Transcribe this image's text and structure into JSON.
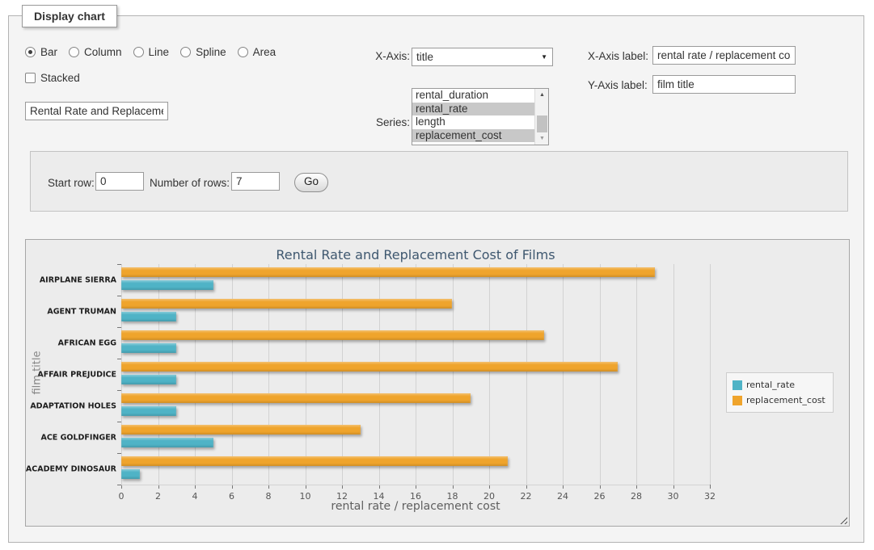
{
  "panel_legend": "Display chart",
  "chart_types": {
    "options": [
      {
        "label": "Bar",
        "selected": true
      },
      {
        "label": "Column",
        "selected": false
      },
      {
        "label": "Line",
        "selected": false
      },
      {
        "label": "Spline",
        "selected": false
      },
      {
        "label": "Area",
        "selected": false
      }
    ]
  },
  "stacked": {
    "label": "Stacked",
    "checked": false
  },
  "chart_title_input": {
    "value": "Rental Rate and Replacement Cost of Films"
  },
  "x_axis_select": {
    "label": "X-Axis:",
    "value": "title"
  },
  "series_select": {
    "label": "Series:",
    "options": [
      {
        "label": "rental_duration",
        "selected": false
      },
      {
        "label": "rental_rate",
        "selected": true
      },
      {
        "label": "length",
        "selected": false
      },
      {
        "label": "replacement_cost",
        "selected": true
      }
    ]
  },
  "x_axis_label_input": {
    "label": "X-Axis label:",
    "value": "rental rate / replacement cost"
  },
  "y_axis_label_input": {
    "label": "Y-Axis label:",
    "value": "film title"
  },
  "row_controls": {
    "start_row_label": "Start row:",
    "start_row_value": "0",
    "rows_label": "Number of rows:",
    "rows_value": "7",
    "go_label": "Go"
  },
  "icons": {
    "select_arrow": "▼",
    "scroll_up": "▲",
    "scroll_down": "▼",
    "resize_grip": "diagonal-resize-grip"
  },
  "chart_data": {
    "type": "bar",
    "orientation": "horizontal",
    "title": "Rental Rate and Replacement Cost of Films",
    "categories": [
      "AIRPLANE SIERRA",
      "AGENT TRUMAN",
      "AFRICAN EGG",
      "AFFAIR PREJUDICE",
      "ADAPTATION HOLES",
      "ACE GOLDFINGER",
      "ACADEMY DINOSAUR"
    ],
    "series": [
      {
        "name": "rental_rate",
        "color": "#4FB3C6",
        "values": [
          4.99,
          2.99,
          2.99,
          2.99,
          2.99,
          4.99,
          0.99
        ]
      },
      {
        "name": "replacement_cost",
        "color": "#EFA42C",
        "values": [
          28.99,
          17.99,
          22.99,
          26.99,
          18.99,
          12.99,
          20.99
        ]
      }
    ],
    "bar_group_order_top_to_bottom": [
      "replacement_cost",
      "rental_rate"
    ],
    "xlabel": "rental rate / replacement cost",
    "ylabel": "film title",
    "xlim": [
      0,
      32
    ],
    "xtick_step": 2,
    "grid": true,
    "legend_position": "right"
  }
}
